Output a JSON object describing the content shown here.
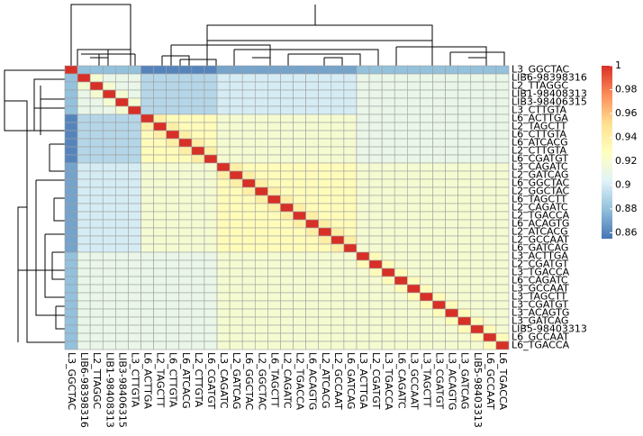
{
  "chart_data": {
    "type": "heatmap",
    "rows": [
      "L3_GGCTAC",
      "LIB6-98398316",
      "L2_TTAGGC",
      "LIB1-98408313",
      "LIB3-98406315",
      "L3_CTTGTA",
      "L6_ACTTGA",
      "L2_TAGCTT",
      "L6_CTTGTA",
      "L6_ATCACG",
      "L2_CTTGTA",
      "L6_CGATGT",
      "L3_CAGATC",
      "L2_GATCAG",
      "L6_GGCTAC",
      "L2_GGCTAC",
      "L6_TAGCTT",
      "L2_CAGATC",
      "L2_TGACCA",
      "L6_ACAGTG",
      "L2_ATCACG",
      "L2_GCCAAT",
      "L6_GATCAG",
      "L3_ACTTGA",
      "L2_CGATGT",
      "L3_TGACCA",
      "L6_CAGATC",
      "L3_GCCAAT",
      "L3_TAGCTT",
      "L3_CGATGT",
      "L3_ACAGTG",
      "L3_GATCAG",
      "LIB5-98403313",
      "L6_GCCAAT",
      "L6_TGACCA"
    ],
    "columns": [
      "L3_GGCTAC",
      "LIB6-98398316",
      "L2_TTAGGC",
      "LIB1-98408313",
      "LIB3-98406315",
      "L3_CTTGTA",
      "L6_ACTTGA",
      "L2_TAGCTT",
      "L6_CTTGTA",
      "L6_ATCACG",
      "L2_CTTGTA",
      "L6_CGATGT",
      "L3_CAGATC",
      "L2_GATCAG",
      "L6_GGCTAC",
      "L2_GGCTAC",
      "L6_TAGCTT",
      "L2_CAGATC",
      "L2_TGACCA",
      "L6_ACAGTG",
      "L2_ATCACG",
      "L2_GCCAAT",
      "L6_GATCAG",
      "L3_ACTTGA",
      "L2_CGATGT",
      "L3_TGACCA",
      "L6_CAGATC",
      "L3_GCCAAT",
      "L3_TAGCTT",
      "L3_CGATGT",
      "L3_ACAGTG",
      "L3_GATCAG",
      "LIB5-98403313",
      "L6_GCCAAT",
      "L6_TGACCA"
    ],
    "values": [
      [
        1,
        0.88,
        0.88,
        0.88,
        0.88,
        0.88,
        0.86,
        0.86,
        0.86,
        0.86,
        0.86,
        0.86,
        0.87,
        0.87,
        0.87,
        0.87,
        0.87,
        0.87,
        0.87,
        0.87,
        0.87,
        0.87,
        0.87,
        0.88,
        0.88,
        0.88,
        0.88,
        0.88,
        0.88,
        0.88,
        0.88,
        0.88,
        0.88,
        0.88,
        0.88
      ],
      [
        0.88,
        1,
        0.92,
        0.91,
        0.91,
        0.91,
        0.89,
        0.89,
        0.89,
        0.89,
        0.89,
        0.89,
        0.9,
        0.9,
        0.9,
        0.9,
        0.9,
        0.9,
        0.9,
        0.9,
        0.9,
        0.9,
        0.9,
        0.91,
        0.91,
        0.91,
        0.91,
        0.91,
        0.91,
        0.91,
        0.91,
        0.91,
        0.91,
        0.91,
        0.91
      ],
      [
        0.88,
        0.92,
        1,
        0.92,
        0.91,
        0.91,
        0.89,
        0.89,
        0.89,
        0.89,
        0.89,
        0.89,
        0.9,
        0.9,
        0.9,
        0.9,
        0.9,
        0.9,
        0.9,
        0.9,
        0.9,
        0.9,
        0.9,
        0.91,
        0.91,
        0.91,
        0.91,
        0.91,
        0.91,
        0.91,
        0.91,
        0.91,
        0.91,
        0.91,
        0.91
      ],
      [
        0.88,
        0.91,
        0.92,
        1,
        0.92,
        0.91,
        0.89,
        0.89,
        0.89,
        0.89,
        0.89,
        0.89,
        0.9,
        0.9,
        0.9,
        0.9,
        0.9,
        0.9,
        0.9,
        0.9,
        0.9,
        0.9,
        0.9,
        0.91,
        0.91,
        0.91,
        0.91,
        0.91,
        0.91,
        0.91,
        0.91,
        0.91,
        0.91,
        0.91,
        0.91
      ],
      [
        0.88,
        0.91,
        0.91,
        0.92,
        1,
        0.92,
        0.89,
        0.89,
        0.89,
        0.89,
        0.89,
        0.89,
        0.9,
        0.9,
        0.9,
        0.9,
        0.9,
        0.9,
        0.9,
        0.9,
        0.9,
        0.9,
        0.9,
        0.91,
        0.91,
        0.91,
        0.91,
        0.91,
        0.91,
        0.91,
        0.91,
        0.91,
        0.91,
        0.91,
        0.91
      ],
      [
        0.88,
        0.91,
        0.91,
        0.91,
        0.92,
        1,
        0.89,
        0.89,
        0.89,
        0.89,
        0.89,
        0.89,
        0.9,
        0.9,
        0.9,
        0.9,
        0.9,
        0.9,
        0.9,
        0.9,
        0.9,
        0.9,
        0.9,
        0.91,
        0.91,
        0.91,
        0.91,
        0.91,
        0.91,
        0.91,
        0.91,
        0.91,
        0.91,
        0.91,
        0.91
      ],
      [
        0.86,
        0.89,
        0.89,
        0.89,
        0.89,
        0.89,
        1,
        0.94,
        0.93,
        0.93,
        0.93,
        0.93,
        0.92,
        0.92,
        0.92,
        0.92,
        0.92,
        0.92,
        0.92,
        0.92,
        0.92,
        0.92,
        0.92,
        0.91,
        0.91,
        0.91,
        0.91,
        0.91,
        0.91,
        0.91,
        0.91,
        0.91,
        0.91,
        0.91,
        0.91
      ],
      [
        0.86,
        0.89,
        0.89,
        0.89,
        0.89,
        0.89,
        0.94,
        1,
        0.94,
        0.93,
        0.93,
        0.93,
        0.92,
        0.92,
        0.92,
        0.92,
        0.92,
        0.92,
        0.92,
        0.92,
        0.92,
        0.92,
        0.92,
        0.91,
        0.91,
        0.91,
        0.91,
        0.91,
        0.91,
        0.91,
        0.91,
        0.91,
        0.91,
        0.91,
        0.91
      ],
      [
        0.86,
        0.89,
        0.89,
        0.89,
        0.89,
        0.89,
        0.93,
        0.94,
        1,
        0.94,
        0.93,
        0.93,
        0.92,
        0.92,
        0.92,
        0.92,
        0.92,
        0.92,
        0.92,
        0.92,
        0.92,
        0.92,
        0.92,
        0.91,
        0.91,
        0.91,
        0.91,
        0.91,
        0.91,
        0.91,
        0.91,
        0.91,
        0.91,
        0.91,
        0.91
      ],
      [
        0.86,
        0.89,
        0.89,
        0.89,
        0.89,
        0.89,
        0.93,
        0.93,
        0.94,
        1,
        0.94,
        0.93,
        0.92,
        0.92,
        0.92,
        0.92,
        0.92,
        0.92,
        0.92,
        0.92,
        0.92,
        0.92,
        0.92,
        0.91,
        0.91,
        0.91,
        0.91,
        0.91,
        0.91,
        0.91,
        0.91,
        0.91,
        0.91,
        0.91,
        0.91
      ],
      [
        0.86,
        0.89,
        0.89,
        0.89,
        0.89,
        0.89,
        0.93,
        0.93,
        0.93,
        0.94,
        1,
        0.94,
        0.92,
        0.92,
        0.92,
        0.92,
        0.92,
        0.92,
        0.92,
        0.92,
        0.92,
        0.92,
        0.92,
        0.91,
        0.91,
        0.91,
        0.91,
        0.91,
        0.91,
        0.91,
        0.91,
        0.91,
        0.91,
        0.91,
        0.91
      ],
      [
        0.86,
        0.89,
        0.89,
        0.89,
        0.89,
        0.89,
        0.93,
        0.93,
        0.93,
        0.93,
        0.94,
        1,
        0.92,
        0.92,
        0.92,
        0.92,
        0.92,
        0.92,
        0.92,
        0.92,
        0.92,
        0.92,
        0.92,
        0.91,
        0.91,
        0.91,
        0.91,
        0.91,
        0.91,
        0.91,
        0.91,
        0.91,
        0.91,
        0.91,
        0.91
      ],
      [
        0.87,
        0.9,
        0.9,
        0.9,
        0.9,
        0.9,
        0.92,
        0.92,
        0.92,
        0.92,
        0.92,
        0.92,
        1,
        0.94,
        0.93,
        0.93,
        0.93,
        0.93,
        0.93,
        0.93,
        0.93,
        0.93,
        0.93,
        0.92,
        0.92,
        0.92,
        0.92,
        0.92,
        0.92,
        0.92,
        0.92,
        0.92,
        0.92,
        0.92,
        0.92
      ],
      [
        0.87,
        0.9,
        0.9,
        0.9,
        0.9,
        0.9,
        0.92,
        0.92,
        0.92,
        0.92,
        0.92,
        0.92,
        0.94,
        1,
        0.94,
        0.93,
        0.93,
        0.93,
        0.93,
        0.93,
        0.93,
        0.93,
        0.93,
        0.92,
        0.92,
        0.92,
        0.92,
        0.92,
        0.92,
        0.92,
        0.92,
        0.92,
        0.92,
        0.92,
        0.92
      ],
      [
        0.87,
        0.9,
        0.9,
        0.9,
        0.9,
        0.9,
        0.92,
        0.92,
        0.92,
        0.92,
        0.92,
        0.92,
        0.93,
        0.94,
        1,
        0.94,
        0.93,
        0.93,
        0.93,
        0.93,
        0.93,
        0.93,
        0.93,
        0.92,
        0.92,
        0.92,
        0.92,
        0.92,
        0.92,
        0.92,
        0.92,
        0.92,
        0.92,
        0.92,
        0.92
      ],
      [
        0.87,
        0.9,
        0.9,
        0.9,
        0.9,
        0.9,
        0.92,
        0.92,
        0.92,
        0.92,
        0.92,
        0.92,
        0.93,
        0.93,
        0.94,
        1,
        0.94,
        0.93,
        0.93,
        0.93,
        0.93,
        0.93,
        0.93,
        0.92,
        0.92,
        0.92,
        0.92,
        0.92,
        0.92,
        0.92,
        0.92,
        0.92,
        0.92,
        0.92,
        0.92
      ],
      [
        0.87,
        0.9,
        0.9,
        0.9,
        0.9,
        0.9,
        0.92,
        0.92,
        0.92,
        0.92,
        0.92,
        0.92,
        0.93,
        0.93,
        0.93,
        0.94,
        1,
        0.94,
        0.93,
        0.93,
        0.93,
        0.93,
        0.93,
        0.92,
        0.92,
        0.92,
        0.92,
        0.92,
        0.92,
        0.92,
        0.92,
        0.92,
        0.92,
        0.92,
        0.92
      ],
      [
        0.87,
        0.9,
        0.9,
        0.9,
        0.9,
        0.9,
        0.92,
        0.92,
        0.92,
        0.92,
        0.92,
        0.92,
        0.93,
        0.93,
        0.93,
        0.93,
        0.94,
        1,
        0.94,
        0.93,
        0.93,
        0.93,
        0.93,
        0.92,
        0.92,
        0.92,
        0.92,
        0.92,
        0.92,
        0.92,
        0.92,
        0.92,
        0.92,
        0.92,
        0.92
      ],
      [
        0.87,
        0.9,
        0.9,
        0.9,
        0.9,
        0.9,
        0.92,
        0.92,
        0.92,
        0.92,
        0.92,
        0.92,
        0.93,
        0.93,
        0.93,
        0.93,
        0.93,
        0.94,
        1,
        0.94,
        0.93,
        0.93,
        0.93,
        0.92,
        0.92,
        0.92,
        0.92,
        0.92,
        0.92,
        0.92,
        0.92,
        0.92,
        0.92,
        0.92,
        0.92
      ],
      [
        0.87,
        0.9,
        0.9,
        0.9,
        0.9,
        0.9,
        0.92,
        0.92,
        0.92,
        0.92,
        0.92,
        0.92,
        0.93,
        0.93,
        0.93,
        0.93,
        0.93,
        0.93,
        0.94,
        1,
        0.94,
        0.93,
        0.93,
        0.92,
        0.92,
        0.92,
        0.92,
        0.92,
        0.92,
        0.92,
        0.92,
        0.92,
        0.92,
        0.92,
        0.92
      ],
      [
        0.87,
        0.9,
        0.9,
        0.9,
        0.9,
        0.9,
        0.92,
        0.92,
        0.92,
        0.92,
        0.92,
        0.92,
        0.93,
        0.93,
        0.93,
        0.93,
        0.93,
        0.93,
        0.93,
        0.94,
        1,
        0.94,
        0.93,
        0.92,
        0.92,
        0.92,
        0.92,
        0.92,
        0.92,
        0.92,
        0.92,
        0.92,
        0.92,
        0.92,
        0.92
      ],
      [
        0.87,
        0.9,
        0.9,
        0.9,
        0.9,
        0.9,
        0.92,
        0.92,
        0.92,
        0.92,
        0.92,
        0.92,
        0.93,
        0.93,
        0.93,
        0.93,
        0.93,
        0.93,
        0.93,
        0.93,
        0.94,
        1,
        0.94,
        0.92,
        0.92,
        0.92,
        0.92,
        0.92,
        0.92,
        0.92,
        0.92,
        0.92,
        0.92,
        0.92,
        0.92
      ],
      [
        0.87,
        0.9,
        0.9,
        0.9,
        0.9,
        0.9,
        0.92,
        0.92,
        0.92,
        0.92,
        0.92,
        0.92,
        0.93,
        0.93,
        0.93,
        0.93,
        0.93,
        0.93,
        0.93,
        0.93,
        0.93,
        0.94,
        1,
        0.92,
        0.92,
        0.92,
        0.92,
        0.92,
        0.92,
        0.92,
        0.92,
        0.92,
        0.92,
        0.92,
        0.92
      ],
      [
        0.88,
        0.91,
        0.91,
        0.91,
        0.91,
        0.91,
        0.91,
        0.91,
        0.91,
        0.91,
        0.91,
        0.91,
        0.92,
        0.92,
        0.92,
        0.92,
        0.92,
        0.92,
        0.92,
        0.92,
        0.92,
        0.92,
        0.92,
        1,
        0.93,
        0.92,
        0.92,
        0.92,
        0.92,
        0.92,
        0.92,
        0.92,
        0.92,
        0.92,
        0.92
      ],
      [
        0.88,
        0.91,
        0.91,
        0.91,
        0.91,
        0.91,
        0.91,
        0.91,
        0.91,
        0.91,
        0.91,
        0.91,
        0.92,
        0.92,
        0.92,
        0.92,
        0.92,
        0.92,
        0.92,
        0.92,
        0.92,
        0.92,
        0.92,
        0.93,
        1,
        0.93,
        0.92,
        0.92,
        0.92,
        0.92,
        0.92,
        0.92,
        0.92,
        0.92,
        0.92
      ],
      [
        0.88,
        0.91,
        0.91,
        0.91,
        0.91,
        0.91,
        0.91,
        0.91,
        0.91,
        0.91,
        0.91,
        0.91,
        0.92,
        0.92,
        0.92,
        0.92,
        0.92,
        0.92,
        0.92,
        0.92,
        0.92,
        0.92,
        0.92,
        0.92,
        0.93,
        1,
        0.93,
        0.92,
        0.92,
        0.92,
        0.92,
        0.92,
        0.92,
        0.92,
        0.92
      ],
      [
        0.88,
        0.91,
        0.91,
        0.91,
        0.91,
        0.91,
        0.91,
        0.91,
        0.91,
        0.91,
        0.91,
        0.91,
        0.92,
        0.92,
        0.92,
        0.92,
        0.92,
        0.92,
        0.92,
        0.92,
        0.92,
        0.92,
        0.92,
        0.92,
        0.92,
        0.93,
        1,
        0.93,
        0.92,
        0.92,
        0.92,
        0.92,
        0.92,
        0.92,
        0.92
      ],
      [
        0.88,
        0.91,
        0.91,
        0.91,
        0.91,
        0.91,
        0.91,
        0.91,
        0.91,
        0.91,
        0.91,
        0.91,
        0.92,
        0.92,
        0.92,
        0.92,
        0.92,
        0.92,
        0.92,
        0.92,
        0.92,
        0.92,
        0.92,
        0.92,
        0.92,
        0.92,
        0.93,
        1,
        0.93,
        0.92,
        0.92,
        0.92,
        0.92,
        0.92,
        0.92
      ],
      [
        0.88,
        0.91,
        0.91,
        0.91,
        0.91,
        0.91,
        0.91,
        0.91,
        0.91,
        0.91,
        0.91,
        0.91,
        0.92,
        0.92,
        0.92,
        0.92,
        0.92,
        0.92,
        0.92,
        0.92,
        0.92,
        0.92,
        0.92,
        0.92,
        0.92,
        0.92,
        0.92,
        0.93,
        1,
        0.93,
        0.92,
        0.92,
        0.92,
        0.92,
        0.92
      ],
      [
        0.88,
        0.91,
        0.91,
        0.91,
        0.91,
        0.91,
        0.91,
        0.91,
        0.91,
        0.91,
        0.91,
        0.91,
        0.92,
        0.92,
        0.92,
        0.92,
        0.92,
        0.92,
        0.92,
        0.92,
        0.92,
        0.92,
        0.92,
        0.92,
        0.92,
        0.92,
        0.92,
        0.92,
        0.93,
        1,
        0.93,
        0.92,
        0.92,
        0.92,
        0.92
      ],
      [
        0.88,
        0.91,
        0.91,
        0.91,
        0.91,
        0.91,
        0.91,
        0.91,
        0.91,
        0.91,
        0.91,
        0.91,
        0.92,
        0.92,
        0.92,
        0.92,
        0.92,
        0.92,
        0.92,
        0.92,
        0.92,
        0.92,
        0.92,
        0.92,
        0.92,
        0.92,
        0.92,
        0.92,
        0.92,
        0.93,
        1,
        0.93,
        0.92,
        0.92,
        0.92
      ],
      [
        0.88,
        0.91,
        0.91,
        0.91,
        0.91,
        0.91,
        0.91,
        0.91,
        0.91,
        0.91,
        0.91,
        0.91,
        0.92,
        0.92,
        0.92,
        0.92,
        0.92,
        0.92,
        0.92,
        0.92,
        0.92,
        0.92,
        0.92,
        0.92,
        0.92,
        0.92,
        0.92,
        0.92,
        0.92,
        0.92,
        0.93,
        1,
        0.93,
        0.92,
        0.92
      ],
      [
        0.88,
        0.91,
        0.91,
        0.91,
        0.91,
        0.91,
        0.91,
        0.91,
        0.91,
        0.91,
        0.91,
        0.91,
        0.92,
        0.92,
        0.92,
        0.92,
        0.92,
        0.92,
        0.92,
        0.92,
        0.92,
        0.92,
        0.92,
        0.92,
        0.92,
        0.92,
        0.92,
        0.92,
        0.92,
        0.92,
        0.92,
        0.93,
        1,
        0.93,
        0.92
      ],
      [
        0.88,
        0.91,
        0.91,
        0.91,
        0.91,
        0.91,
        0.91,
        0.91,
        0.91,
        0.91,
        0.91,
        0.91,
        0.92,
        0.92,
        0.92,
        0.92,
        0.92,
        0.92,
        0.92,
        0.92,
        0.92,
        0.92,
        0.92,
        0.92,
        0.92,
        0.92,
        0.92,
        0.92,
        0.92,
        0.92,
        0.92,
        0.92,
        0.93,
        1,
        0.93
      ],
      [
        0.88,
        0.91,
        0.91,
        0.91,
        0.91,
        0.91,
        0.91,
        0.91,
        0.91,
        0.91,
        0.91,
        0.91,
        0.92,
        0.92,
        0.92,
        0.92,
        0.92,
        0.92,
        0.92,
        0.92,
        0.92,
        0.92,
        0.92,
        0.92,
        0.92,
        0.92,
        0.92,
        0.92,
        0.92,
        0.92,
        0.92,
        0.92,
        0.92,
        0.93,
        1
      ]
    ],
    "colors": [
      "#4575b4",
      "#91bfdb",
      "#e0f3f8",
      "#ffffbf",
      "#fee090",
      "#fc8d59",
      "#d73027"
    ],
    "zlim": [
      0.855,
      1
    ],
    "zticks": [
      0.86,
      0.88,
      0.9,
      0.92,
      0.94,
      0.96,
      0.98,
      1
    ]
  }
}
